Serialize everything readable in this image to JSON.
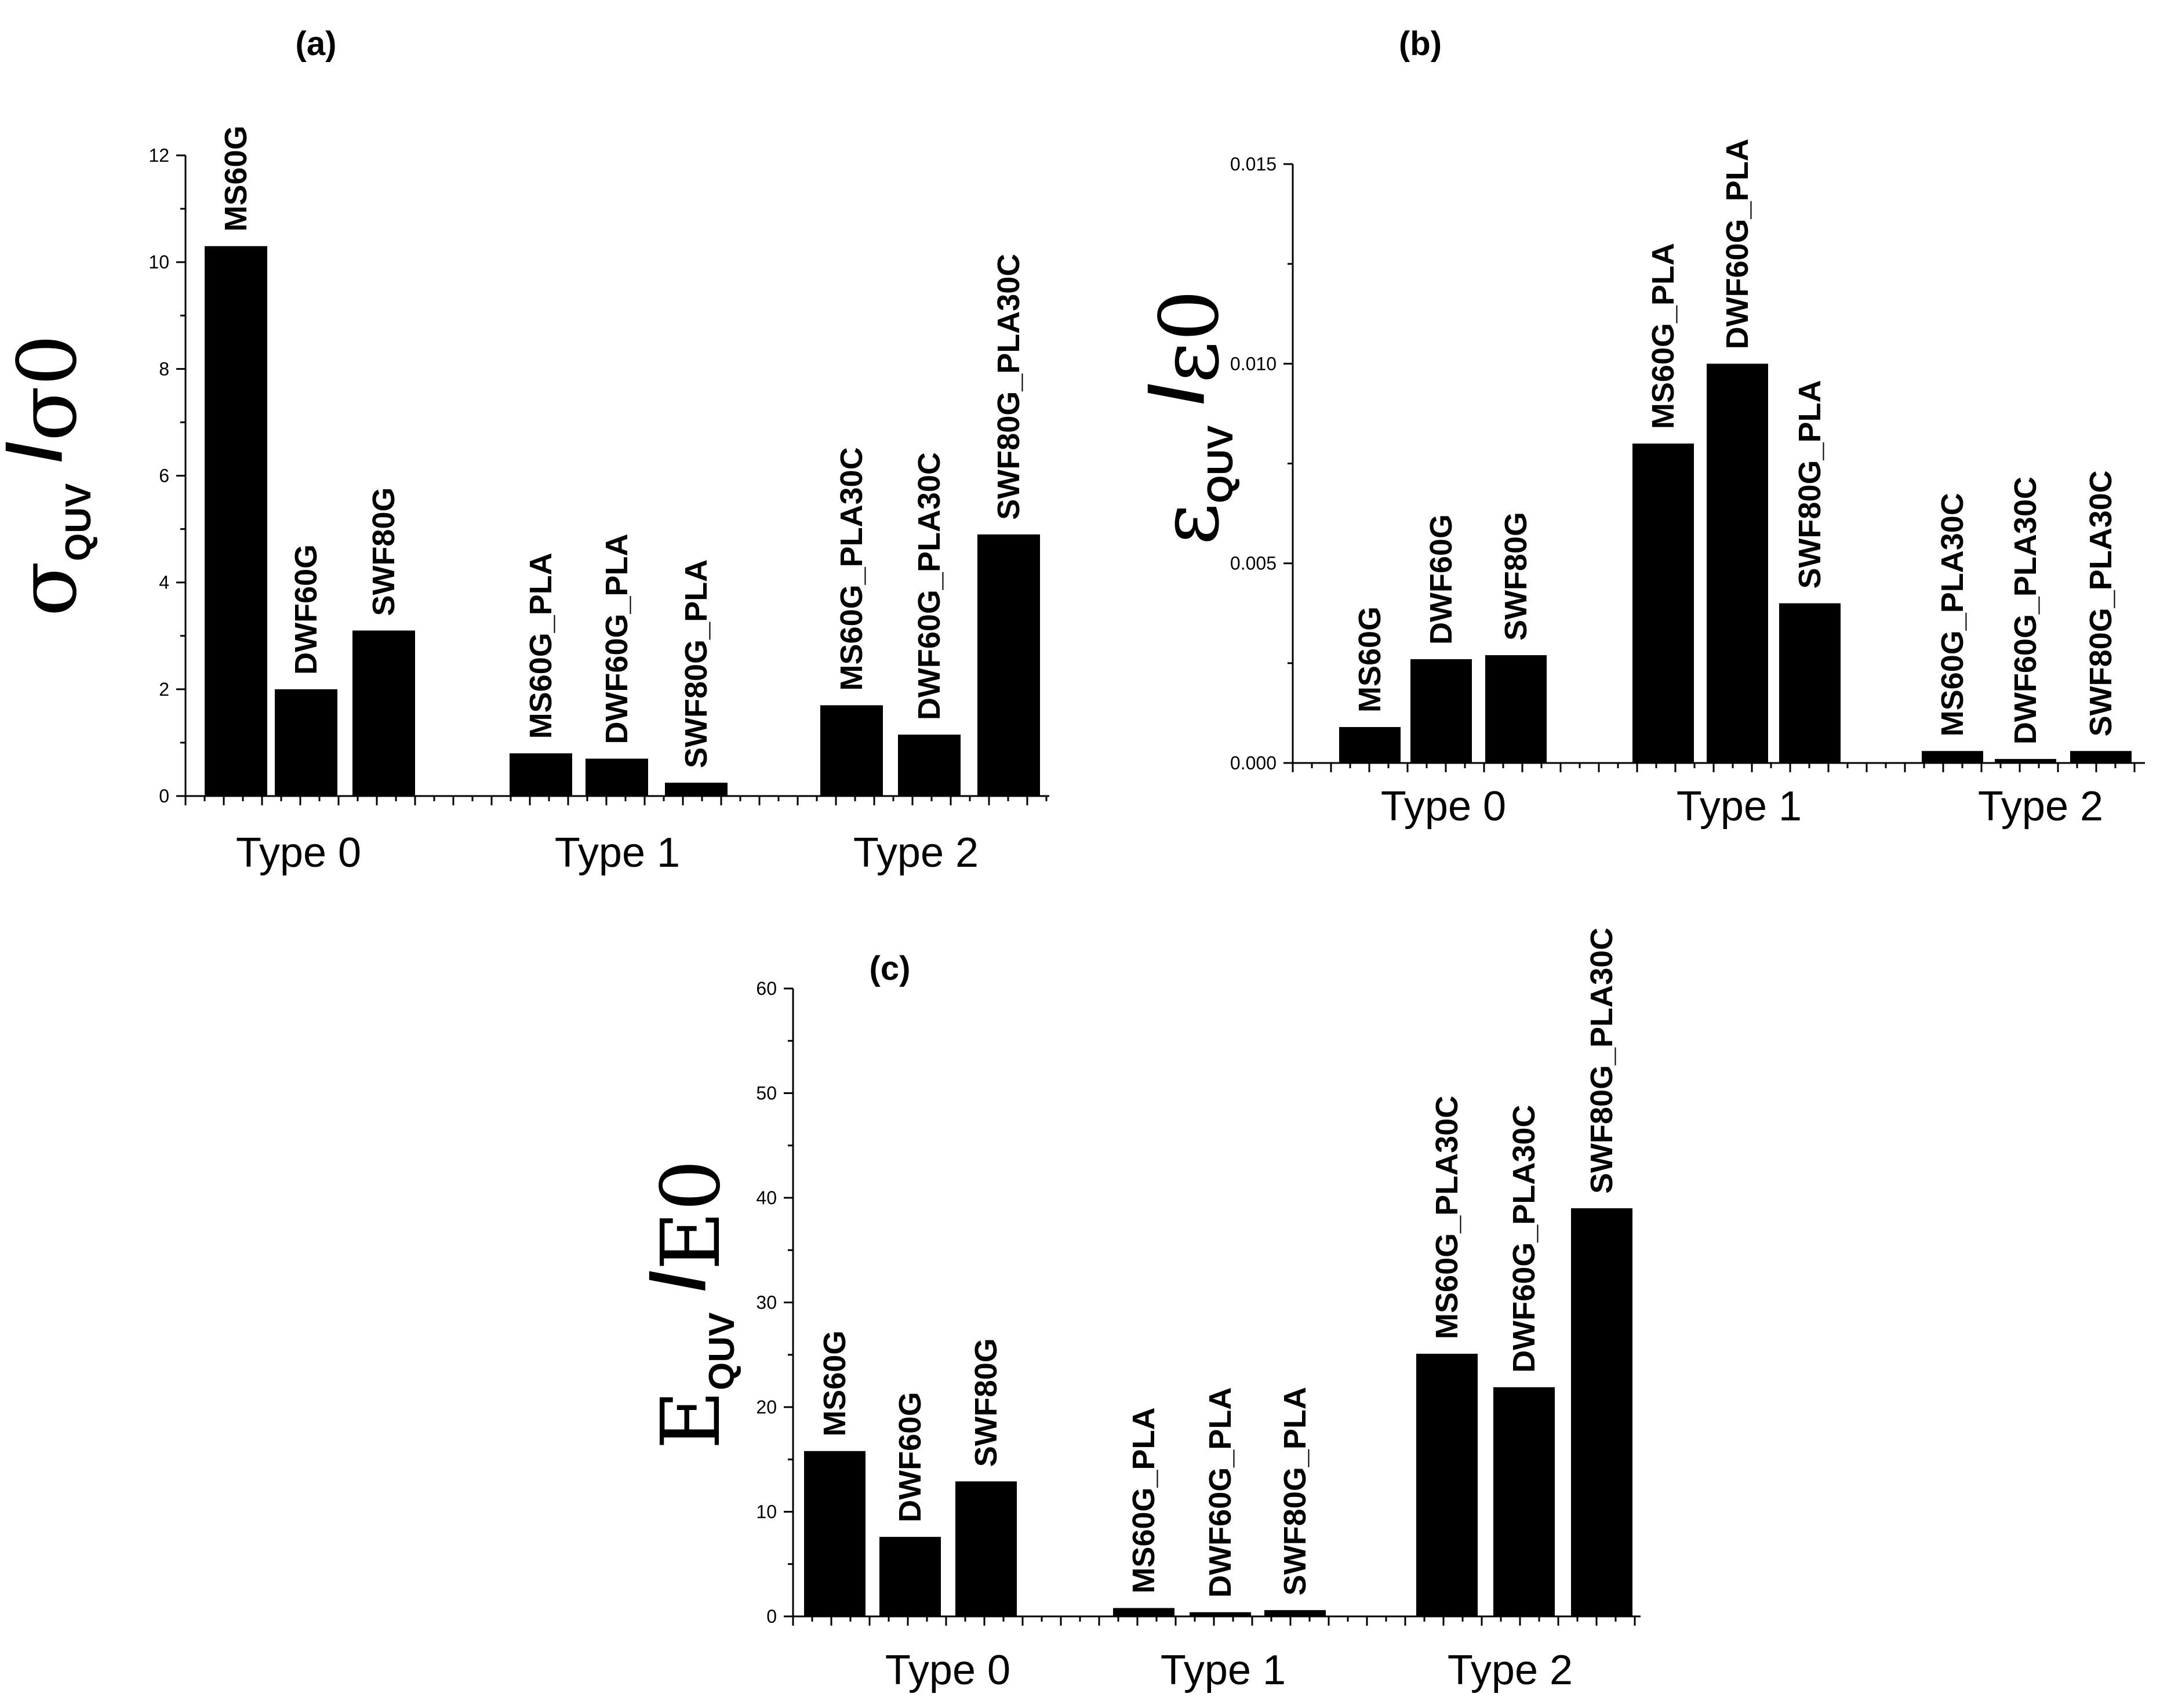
{
  "chart_data": [
    {
      "id": "a",
      "type": "bar",
      "title": "(a)",
      "ylabel": {
        "main": "σ",
        "sub": "QUV",
        "slash": "/",
        "denom": "σ",
        "denom_sub": "0"
      },
      "ylim": [
        0,
        12
      ],
      "yticks": [
        "0",
        "2",
        "4",
        "6",
        "8",
        "10",
        "12"
      ],
      "ytick_values": [
        0,
        2,
        4,
        6,
        8,
        10,
        12
      ],
      "groups": [
        "Type 0",
        "Type 1",
        "Type 2"
      ],
      "bars": [
        {
          "label": "MS60G",
          "value": 10.3,
          "group": 0
        },
        {
          "label": "DWF60G",
          "value": 2.0,
          "group": 0
        },
        {
          "label": "SWF80G",
          "value": 3.1,
          "group": 0
        },
        {
          "label": "MS60G_PLA",
          "value": 0.8,
          "group": 1
        },
        {
          "label": "DWF60G_PLA",
          "value": 0.7,
          "group": 1
        },
        {
          "label": "SWF80G_PLA",
          "value": 0.25,
          "group": 1
        },
        {
          "label": "MS60G_PLA30C",
          "value": 1.7,
          "group": 2
        },
        {
          "label": "DWF60G_PLA30C",
          "value": 1.15,
          "group": 2
        },
        {
          "label": "SWF80G_PLA30C",
          "value": 4.9,
          "group": 2
        }
      ]
    },
    {
      "id": "b",
      "type": "bar",
      "title": "(b)",
      "ylabel": {
        "main": "ε",
        "sub": "QUV",
        "slash": "/",
        "denom": "ε",
        "denom_sub": "0"
      },
      "ylim": [
        0,
        0.015
      ],
      "yticks": [
        "0.000",
        "0.005",
        "0.010",
        "0.015"
      ],
      "ytick_values": [
        0,
        0.005,
        0.01,
        0.015
      ],
      "groups": [
        "Type 0",
        "Type 1",
        "Type 2"
      ],
      "bars": [
        {
          "label": "MS60G",
          "value": 0.0009,
          "group": 0
        },
        {
          "label": "DWF60G",
          "value": 0.0026,
          "group": 0
        },
        {
          "label": "SWF80G",
          "value": 0.0027,
          "group": 0
        },
        {
          "label": "MS60G_PLA",
          "value": 0.008,
          "group": 1
        },
        {
          "label": "DWF60G_PLA",
          "value": 0.01,
          "group": 1
        },
        {
          "label": "SWF80G_PLA",
          "value": 0.004,
          "group": 1
        },
        {
          "label": "MS60G_PLA30C",
          "value": 0.0003,
          "group": 2
        },
        {
          "label": "DWF60G_PLA30C",
          "value": 0.0001,
          "group": 2
        },
        {
          "label": "SWF80G_PLA30C",
          "value": 0.0003,
          "group": 2
        }
      ]
    },
    {
      "id": "c",
      "type": "bar",
      "title": "(c)",
      "ylabel": {
        "main": "E",
        "sub": "QUV",
        "slash": "/",
        "denom": "E",
        "denom_sub": "0"
      },
      "ylim": [
        0,
        60
      ],
      "yticks": [
        "0",
        "10",
        "20",
        "30",
        "40",
        "50",
        "60"
      ],
      "ytick_values": [
        0,
        10,
        20,
        30,
        40,
        50,
        60
      ],
      "groups": [
        "Type 0",
        "Type 1",
        "Type 2"
      ],
      "bars": [
        {
          "label": "MS60G",
          "value": 15.8,
          "group": 0
        },
        {
          "label": "DWF60G",
          "value": 7.6,
          "group": 0
        },
        {
          "label": "SWF80G",
          "value": 12.9,
          "group": 0
        },
        {
          "label": "MS60G_PLA",
          "value": 0.8,
          "group": 1
        },
        {
          "label": "DWF60G_PLA",
          "value": 0.4,
          "group": 1
        },
        {
          "label": "SWF80G_PLA",
          "value": 0.6,
          "group": 1
        },
        {
          "label": "MS60G_PLA30C",
          "value": 25.1,
          "group": 2
        },
        {
          "label": "DWF60G_PLA30C",
          "value": 21.9,
          "group": 2
        },
        {
          "label": "SWF80G_PLA30C",
          "value": 39.0,
          "group": 2
        }
      ]
    }
  ]
}
